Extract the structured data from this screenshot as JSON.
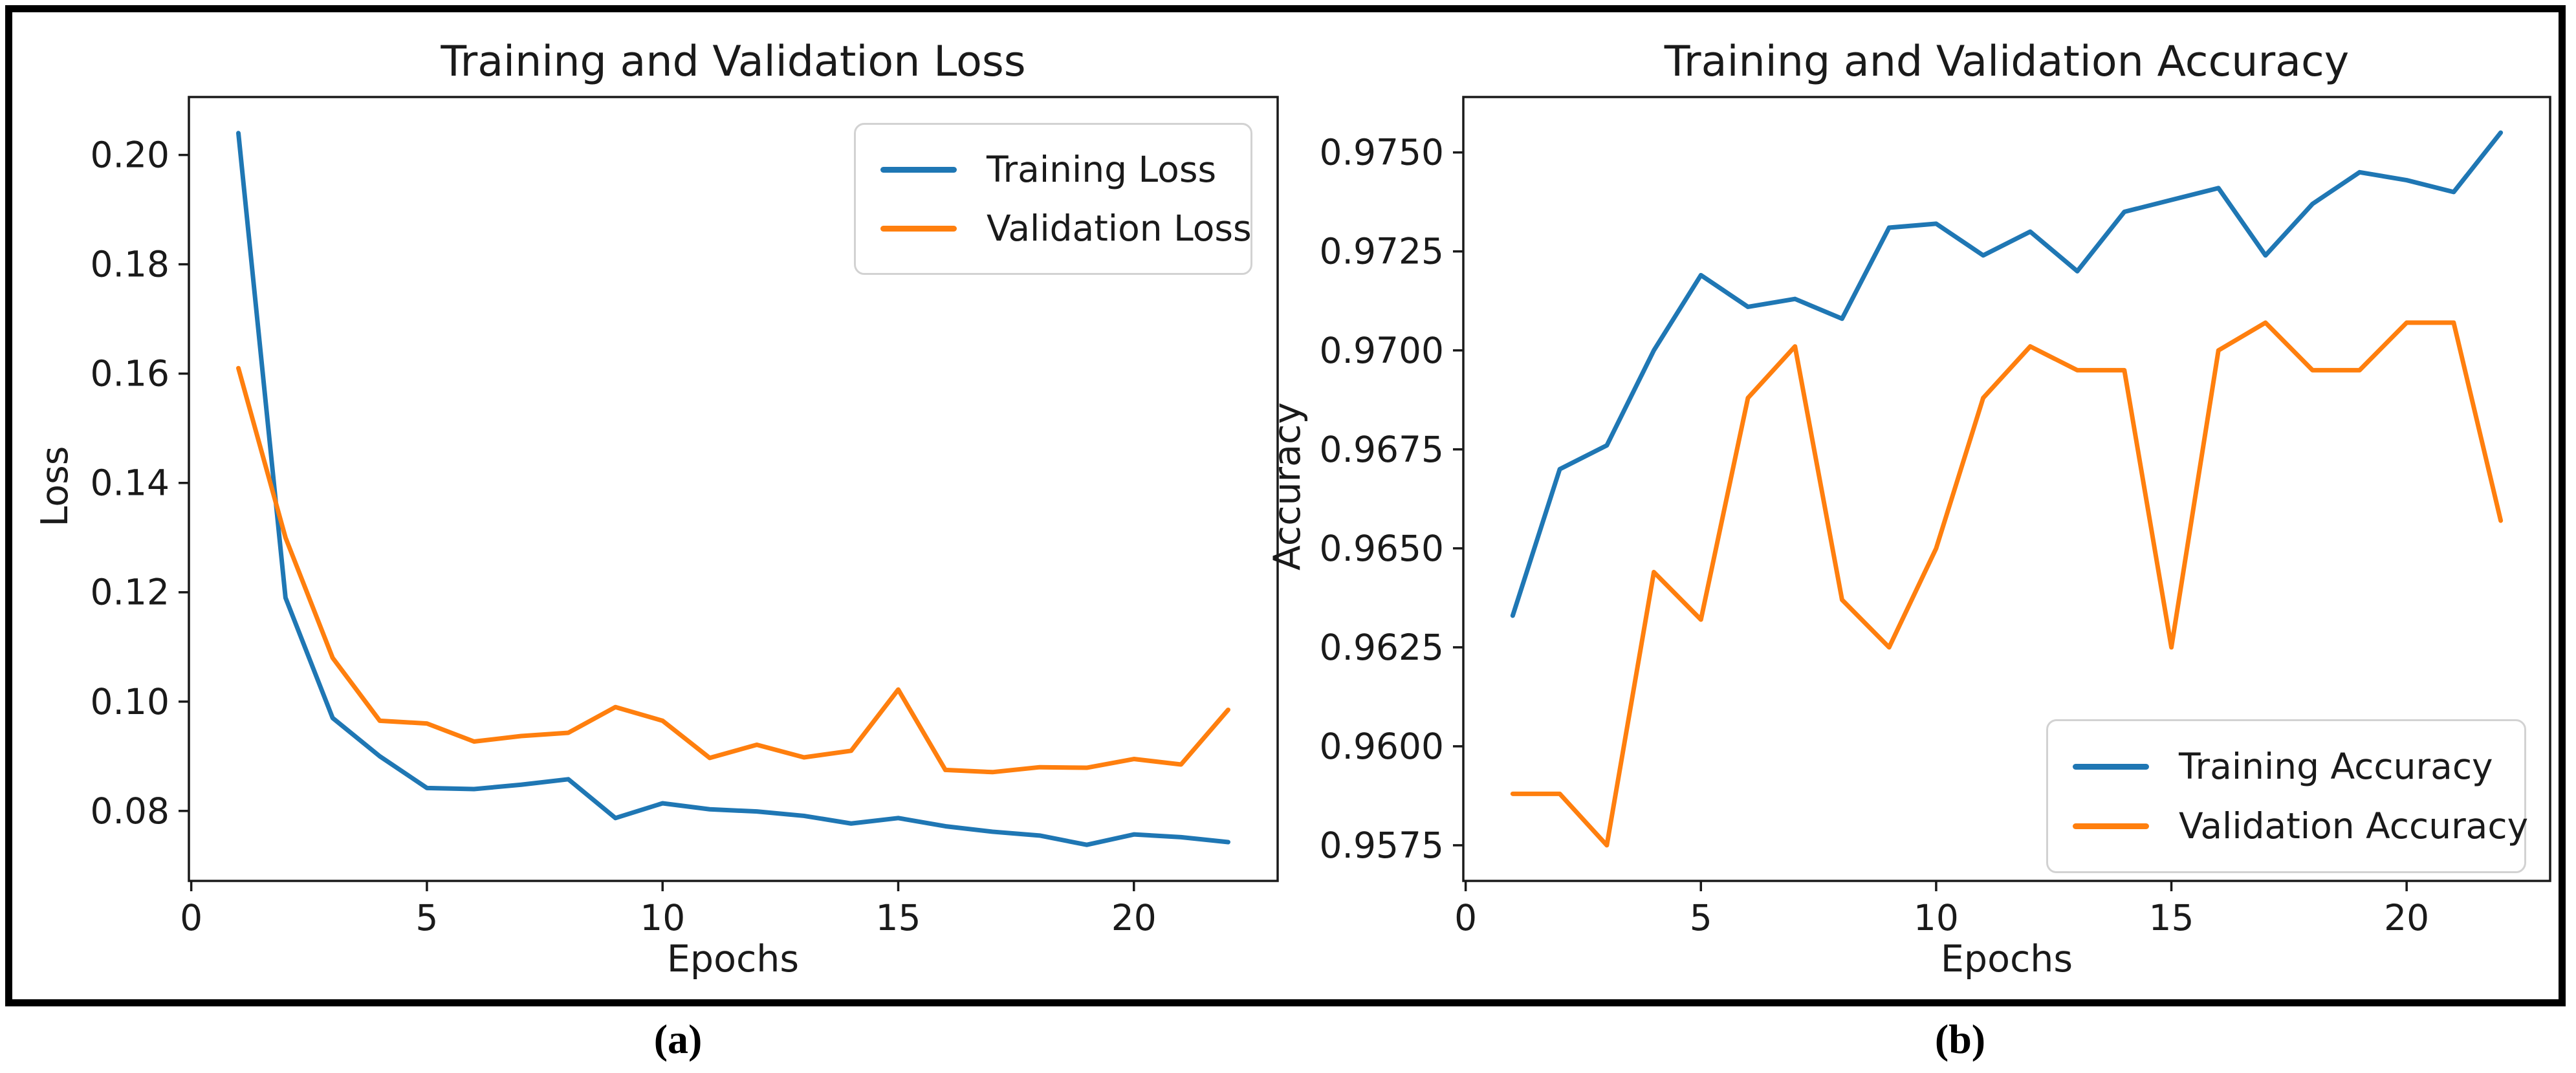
{
  "figure": {
    "captions": {
      "a": "(a)",
      "b": "(b)"
    }
  },
  "chart_data": [
    {
      "type": "line",
      "title": "Training and Validation Loss",
      "xlabel": "Epochs",
      "ylabel": "Loss",
      "x": [
        1,
        2,
        3,
        4,
        5,
        6,
        7,
        8,
        9,
        10,
        11,
        12,
        13,
        14,
        15,
        16,
        17,
        18,
        19,
        20,
        21,
        22
      ],
      "series": [
        {
          "name": "Training Loss",
          "color": "#1f77b4",
          "values": [
            0.204,
            0.119,
            0.097,
            0.09,
            0.0842,
            0.084,
            0.0848,
            0.0858,
            0.0787,
            0.0814,
            0.0803,
            0.0799,
            0.0791,
            0.0777,
            0.0787,
            0.0772,
            0.0762,
            0.0755,
            0.0738,
            0.0757,
            0.0752,
            0.0743
          ]
        },
        {
          "name": "Validation Loss",
          "color": "#ff7f0e",
          "values": [
            0.161,
            0.13,
            0.108,
            0.0965,
            0.096,
            0.0927,
            0.0937,
            0.0943,
            0.099,
            0.0965,
            0.0897,
            0.0921,
            0.0898,
            0.091,
            0.1022,
            0.0875,
            0.0871,
            0.088,
            0.0879,
            0.0895,
            0.0885,
            0.0985
          ]
        }
      ],
      "xlim": [
        -0.05,
        23.05
      ],
      "ylim": [
        0.0672,
        0.2106
      ],
      "xticks": [
        0,
        5,
        10,
        15,
        20
      ],
      "xtick_labels": [
        "0",
        "5",
        "10",
        "15",
        "20"
      ],
      "yticks": [
        0.08,
        0.1,
        0.12,
        0.14,
        0.16,
        0.18,
        0.2
      ],
      "ytick_labels": [
        "0.08",
        "0.10",
        "0.12",
        "0.14",
        "0.16",
        "0.18",
        "0.20"
      ],
      "legend_position": "upper right",
      "grid": false
    },
    {
      "type": "line",
      "title": "Training and Validation Accuracy",
      "xlabel": "Epochs",
      "ylabel": "Accuracy",
      "x": [
        1,
        2,
        3,
        4,
        5,
        6,
        7,
        8,
        9,
        10,
        11,
        12,
        13,
        14,
        15,
        16,
        17,
        18,
        19,
        20,
        21,
        22
      ],
      "series": [
        {
          "name": "Training Accuracy",
          "color": "#1f77b4",
          "values": [
            0.9633,
            0.967,
            0.9676,
            0.97,
            0.9719,
            0.9711,
            0.9713,
            0.9708,
            0.9731,
            0.9732,
            0.9724,
            0.973,
            0.972,
            0.9735,
            0.9738,
            0.9741,
            0.9724,
            0.9737,
            0.9745,
            0.9743,
            0.974,
            0.9755
          ]
        },
        {
          "name": "Validation Accuracy",
          "color": "#ff7f0e",
          "values": [
            0.9588,
            0.9588,
            0.9575,
            0.9644,
            0.9632,
            0.9688,
            0.9701,
            0.9637,
            0.9625,
            0.965,
            0.9688,
            0.9701,
            0.9695,
            0.9695,
            0.9625,
            0.97,
            0.9707,
            0.9695,
            0.9695,
            0.9707,
            0.9707,
            0.9657
          ]
        }
      ],
      "xlim": [
        -0.05,
        23.05
      ],
      "ylim": [
        0.9566,
        0.9764
      ],
      "xticks": [
        0,
        5,
        10,
        15,
        20
      ],
      "xtick_labels": [
        "0",
        "5",
        "10",
        "15",
        "20"
      ],
      "yticks": [
        0.9575,
        0.96,
        0.9625,
        0.965,
        0.9675,
        0.97,
        0.9725,
        0.975
      ],
      "ytick_labels": [
        "0.9575",
        "0.9600",
        "0.9625",
        "0.9650",
        "0.9675",
        "0.9700",
        "0.9725",
        "0.9750"
      ],
      "legend_position": "lower right",
      "grid": false
    }
  ]
}
